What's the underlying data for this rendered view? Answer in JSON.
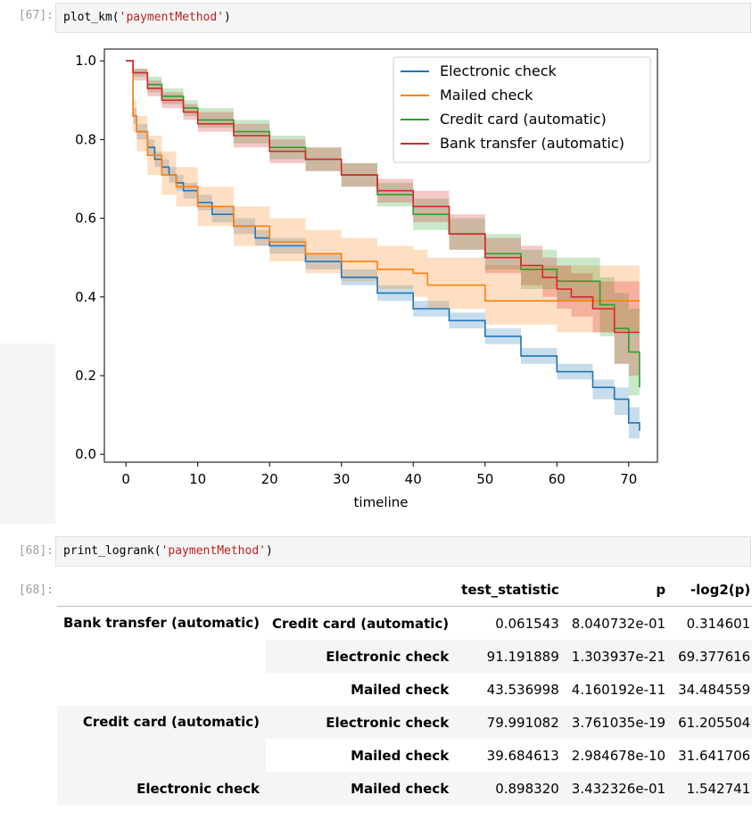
{
  "cells": {
    "cell67": {
      "prompt": "[67]:",
      "code_fn": "plot_km(",
      "code_arg": "'paymentMethod'",
      "code_end": ")"
    },
    "cell68": {
      "prompt": "[68]:",
      "code_fn": "print_logrank(",
      "code_arg": "'paymentMethod'",
      "code_end": ")",
      "out_prompt": "[68]:"
    }
  },
  "chart_data": {
    "type": "line",
    "xlabel": "timeline",
    "ylabel": "",
    "xlim": [
      -3,
      74
    ],
    "ylim": [
      -0.02,
      1.03
    ],
    "xticks": [
      0,
      10,
      20,
      30,
      40,
      50,
      60,
      70
    ],
    "yticks": [
      0.0,
      0.2,
      0.4,
      0.6,
      0.8,
      1.0
    ],
    "ytick_labels": [
      "0.0",
      "0.2",
      "0.4",
      "0.6",
      "0.8",
      "1.0"
    ],
    "legend_position": "top-right",
    "grid": false,
    "series": [
      {
        "name": "Electronic check",
        "color": "#1f77b4",
        "x": [
          0,
          1,
          1.5,
          3,
          4,
          5,
          6,
          7,
          8,
          10,
          12,
          15,
          18,
          20,
          25,
          30,
          35,
          40,
          45,
          50,
          55,
          60,
          65,
          68,
          70,
          71.5
        ],
        "y": [
          1.0,
          0.86,
          0.82,
          0.78,
          0.75,
          0.73,
          0.71,
          0.69,
          0.67,
          0.64,
          0.61,
          0.58,
          0.55,
          0.53,
          0.49,
          0.45,
          0.41,
          0.37,
          0.34,
          0.3,
          0.25,
          0.21,
          0.17,
          0.14,
          0.08,
          0.06
        ],
        "lo": [
          1.0,
          0.84,
          0.8,
          0.76,
          0.73,
          0.71,
          0.69,
          0.67,
          0.65,
          0.62,
          0.59,
          0.56,
          0.53,
          0.51,
          0.47,
          0.43,
          0.39,
          0.35,
          0.32,
          0.28,
          0.23,
          0.19,
          0.14,
          0.1,
          0.04,
          0.03
        ],
        "hi": [
          1.0,
          0.88,
          0.84,
          0.8,
          0.77,
          0.75,
          0.73,
          0.71,
          0.69,
          0.66,
          0.63,
          0.6,
          0.57,
          0.55,
          0.51,
          0.47,
          0.43,
          0.39,
          0.36,
          0.32,
          0.27,
          0.23,
          0.19,
          0.17,
          0.12,
          0.09
        ]
      },
      {
        "name": "Mailed check",
        "color": "#ff7f0e",
        "x": [
          0,
          1,
          1.5,
          3,
          5,
          7,
          10,
          15,
          20,
          25,
          30,
          35,
          40,
          42,
          50,
          60,
          65,
          71.5
        ],
        "y": [
          1.0,
          0.86,
          0.82,
          0.76,
          0.71,
          0.68,
          0.63,
          0.58,
          0.54,
          0.51,
          0.49,
          0.47,
          0.46,
          0.43,
          0.39,
          0.39,
          0.39,
          0.39
        ],
        "lo": [
          1.0,
          0.82,
          0.77,
          0.71,
          0.66,
          0.63,
          0.58,
          0.53,
          0.49,
          0.46,
          0.44,
          0.42,
          0.4,
          0.37,
          0.33,
          0.31,
          0.31,
          0.31
        ],
        "hi": [
          1.0,
          0.9,
          0.86,
          0.81,
          0.77,
          0.73,
          0.68,
          0.63,
          0.6,
          0.57,
          0.55,
          0.53,
          0.52,
          0.5,
          0.48,
          0.48,
          0.48,
          0.48
        ]
      },
      {
        "name": "Credit card (automatic)",
        "color": "#2ca02c",
        "x": [
          0,
          1,
          3,
          5,
          8,
          10,
          15,
          20,
          25,
          30,
          35,
          40,
          45,
          50,
          55,
          60,
          62,
          65,
          66,
          68,
          70,
          71.5
        ],
        "y": [
          1.0,
          0.97,
          0.94,
          0.91,
          0.88,
          0.85,
          0.82,
          0.78,
          0.75,
          0.71,
          0.66,
          0.61,
          0.56,
          0.51,
          0.47,
          0.44,
          0.44,
          0.44,
          0.38,
          0.32,
          0.26,
          0.17
        ],
        "lo": [
          1.0,
          0.96,
          0.92,
          0.89,
          0.86,
          0.83,
          0.79,
          0.75,
          0.72,
          0.68,
          0.63,
          0.57,
          0.52,
          0.47,
          0.42,
          0.39,
          0.39,
          0.37,
          0.3,
          0.23,
          0.15,
          0.07
        ],
        "hi": [
          1.0,
          0.98,
          0.96,
          0.93,
          0.9,
          0.88,
          0.85,
          0.81,
          0.78,
          0.74,
          0.69,
          0.65,
          0.6,
          0.56,
          0.52,
          0.5,
          0.5,
          0.5,
          0.45,
          0.41,
          0.37,
          0.35
        ]
      },
      {
        "name": "Bank transfer (automatic)",
        "color": "#d62728",
        "x": [
          0,
          1,
          3,
          5,
          8,
          10,
          15,
          20,
          25,
          30,
          35,
          40,
          45,
          50,
          55,
          58,
          60,
          62,
          65,
          66,
          68,
          70,
          71.5
        ],
        "y": [
          1.0,
          0.97,
          0.93,
          0.9,
          0.87,
          0.84,
          0.81,
          0.77,
          0.75,
          0.71,
          0.67,
          0.63,
          0.56,
          0.5,
          0.48,
          0.45,
          0.42,
          0.4,
          0.37,
          0.37,
          0.31,
          0.31,
          0.31
        ],
        "lo": [
          1.0,
          0.95,
          0.91,
          0.88,
          0.85,
          0.82,
          0.78,
          0.74,
          0.72,
          0.68,
          0.64,
          0.59,
          0.52,
          0.46,
          0.43,
          0.4,
          0.37,
          0.35,
          0.31,
          0.31,
          0.23,
          0.2,
          0.18
        ],
        "hi": [
          1.0,
          0.98,
          0.95,
          0.92,
          0.89,
          0.87,
          0.84,
          0.8,
          0.78,
          0.74,
          0.7,
          0.67,
          0.61,
          0.55,
          0.53,
          0.5,
          0.48,
          0.46,
          0.44,
          0.44,
          0.44,
          0.44,
          0.44
        ]
      }
    ]
  },
  "logrank_table": {
    "columns": [
      "test_statistic",
      "p",
      "-log2(p)"
    ],
    "rows": [
      {
        "group": "Bank transfer (automatic)",
        "vs": "Credit card (automatic)",
        "test_statistic": "0.061543",
        "p": "8.040732e-01",
        "neg_log2_p": "0.314601"
      },
      {
        "group": "",
        "vs": "Electronic check",
        "test_statistic": "91.191889",
        "p": "1.303937e-21",
        "neg_log2_p": "69.377616"
      },
      {
        "group": "",
        "vs": "Mailed check",
        "test_statistic": "43.536998",
        "p": "4.160192e-11",
        "neg_log2_p": "34.484559"
      },
      {
        "group": "Credit card (automatic)",
        "vs": "Electronic check",
        "test_statistic": "79.991082",
        "p": "3.761035e-19",
        "neg_log2_p": "61.205504"
      },
      {
        "group": "",
        "vs": "Mailed check",
        "test_statistic": "39.684613",
        "p": "2.984678e-10",
        "neg_log2_p": "31.641706"
      },
      {
        "group": "Electronic check",
        "vs": "Mailed check",
        "test_statistic": "0.898320",
        "p": "3.432326e-01",
        "neg_log2_p": "1.542741"
      }
    ]
  }
}
